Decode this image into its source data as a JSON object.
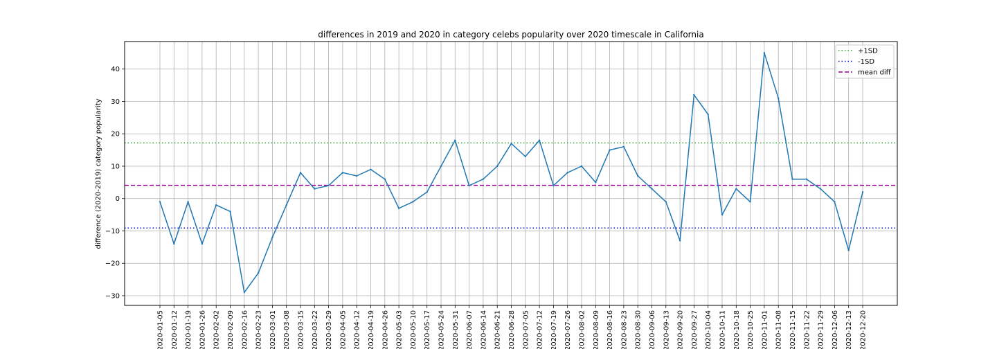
{
  "chart_data": {
    "type": "line",
    "title": "differences in 2019 and 2020 in category celebs popularity over 2020 timescale in California",
    "xlabel": "",
    "ylabel": "difference (2020-2019) category popularity",
    "ylim": [
      -33,
      48.5
    ],
    "yticks": [
      -30,
      -20,
      -10,
      0,
      10,
      20,
      30,
      40
    ],
    "ytick_labels": [
      "−30",
      "−20",
      "−10",
      "0",
      "10",
      "20",
      "30",
      "40"
    ],
    "grid": true,
    "legend_position": "top-right",
    "x": [
      "2020-01-05",
      "2020-01-12",
      "2020-01-19",
      "2020-01-26",
      "2020-02-02",
      "2020-02-09",
      "2020-02-16",
      "2020-02-23",
      "2020-03-01",
      "2020-03-08",
      "2020-03-15",
      "2020-03-22",
      "2020-03-29",
      "2020-04-05",
      "2020-04-12",
      "2020-04-19",
      "2020-04-26",
      "2020-05-03",
      "2020-05-10",
      "2020-05-17",
      "2020-05-24",
      "2020-05-31",
      "2020-06-07",
      "2020-06-14",
      "2020-06-21",
      "2020-06-28",
      "2020-07-05",
      "2020-07-12",
      "2020-07-19",
      "2020-07-26",
      "2020-08-02",
      "2020-08-09",
      "2020-08-16",
      "2020-08-23",
      "2020-08-30",
      "2020-09-06",
      "2020-09-13",
      "2020-09-20",
      "2020-09-27",
      "2020-10-04",
      "2020-10-11",
      "2020-10-18",
      "2020-10-25",
      "2020-11-01",
      "2020-11-08",
      "2020-11-15",
      "2020-11-22",
      "2020-11-29",
      "2020-12-06",
      "2020-12-13",
      "2020-12-20"
    ],
    "series": [
      {
        "color": "#1f77b4",
        "values": [
          -1,
          -14,
          -1,
          -14,
          -2,
          -4,
          -29,
          -23,
          -12,
          -2,
          8,
          3,
          4,
          8,
          7,
          9,
          6,
          -3,
          -1,
          2,
          10,
          18,
          4,
          6,
          10,
          17,
          13,
          18,
          4,
          8,
          10,
          5,
          15,
          16,
          7,
          3,
          -1,
          -13,
          32,
          26,
          -5,
          3,
          -1,
          45,
          31,
          6,
          6,
          3,
          -1,
          -16,
          2
        ]
      }
    ],
    "reference_lines": [
      {
        "name": "+1SD",
        "value": 17.2,
        "color": "#2ca02c",
        "style": "dotted"
      },
      {
        "name": "-1SD",
        "value": -9.1,
        "color": "#0000cc",
        "style": "dotted"
      },
      {
        "name": "mean diff",
        "value": 4.1,
        "color": "#990099",
        "style": "dashed"
      }
    ]
  }
}
